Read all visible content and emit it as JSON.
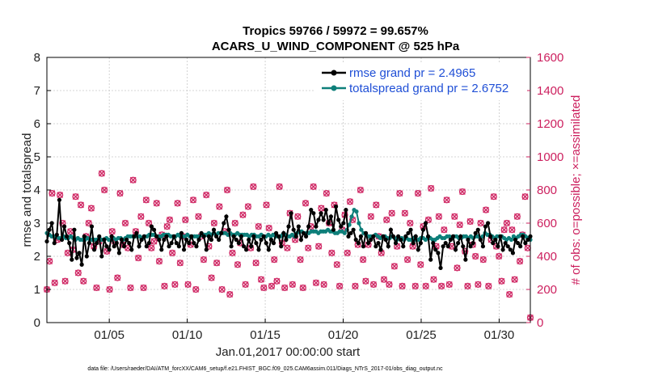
{
  "chart_data": {
    "type": "line",
    "title_line1": "Tropics 59766 / 59972 = 99.657%",
    "title_line2": "ACARS_U_WIND_COMPONENT @ 525 hPa",
    "xlabel": "Jan.01,2017 00:00:00 start",
    "ylabel_left": "rmse and totalspread",
    "ylabel_right": "# of obs: o=possible; ×=assimilated",
    "ylim_left": [
      0,
      8
    ],
    "ylim_right": [
      0,
      1600
    ],
    "xlim_days": [
      1,
      32
    ],
    "x_ticks": [
      {
        "label": "01/05",
        "day": 5
      },
      {
        "label": "01/10",
        "day": 10
      },
      {
        "label": "01/15",
        "day": 15
      },
      {
        "label": "01/20",
        "day": 20
      },
      {
        "label": "01/25",
        "day": 25
      },
      {
        "label": "01/30",
        "day": 30
      }
    ],
    "y_ticks_left": [
      "0",
      "1",
      "2",
      "3",
      "4",
      "5",
      "6",
      "7",
      "8"
    ],
    "y_ticks_right": [
      "0",
      "200",
      "400",
      "600",
      "800",
      "1000",
      "1200",
      "1400",
      "1600"
    ],
    "series": [
      {
        "name": "rmse grand pr = 2.4965",
        "color": "#000000",
        "values": [
          2.45,
          2.8,
          3.0,
          2.4,
          2.65,
          3.7,
          2.5,
          2.9,
          2.6,
          2.4,
          1.9,
          2.8,
          1.95,
          2.1,
          1.75,
          2.6,
          2.0,
          2.4,
          2.9,
          2.2,
          2.4,
          2.6,
          2.0,
          2.5,
          2.3,
          2.2,
          2.6,
          2.3,
          2.4,
          2.1,
          2.5,
          2.3,
          2.5,
          2.4,
          2.2,
          2.6,
          2.7,
          2.3,
          2.5,
          2.6,
          2.3,
          2.4,
          2.9,
          2.8,
          2.6,
          2.5,
          2.2,
          2.5,
          2.6,
          2.3,
          2.4,
          2.6,
          2.4,
          2.3,
          2.7,
          2.2,
          2.5,
          2.4,
          2.6,
          2.4,
          2.3,
          2.5,
          2.7,
          2.6,
          2.2,
          2.6,
          2.5,
          2.8,
          2.6,
          2.5,
          2.7,
          3.0,
          3.2,
          2.8,
          2.3,
          2.6,
          2.5,
          2.4,
          2.6,
          2.3,
          2.2,
          2.5,
          2.3,
          2.6,
          2.4,
          2.2,
          2.5,
          2.6,
          2.4,
          2.2,
          2.5,
          2.4,
          2.7,
          2.6,
          2.3,
          2.7,
          2.5,
          2.9,
          3.3,
          2.8,
          2.6,
          2.9,
          2.5,
          2.7,
          2.6,
          2.9,
          3.4,
          3.3,
          2.9,
          3.1,
          3.3,
          3.1,
          3.4,
          3.0,
          3.2,
          2.8,
          3.5,
          3.1,
          2.9,
          3.0,
          3.4,
          2.6,
          2.7,
          2.8,
          2.5,
          2.4,
          2.6,
          2.3,
          2.7,
          2.4,
          2.5,
          2.6,
          2.3,
          2.4,
          2.2,
          2.6,
          2.5,
          2.3,
          2.8,
          2.6,
          2.4,
          2.6,
          2.5,
          2.3,
          2.6,
          2.7,
          2.8,
          2.4,
          2.6,
          2.2,
          2.4,
          2.8,
          3.0,
          2.6,
          1.9,
          2.4,
          2.2,
          2.1,
          1.65,
          2.3,
          2.4,
          2.3,
          2.5,
          2.6,
          2.2,
          2.4,
          2.6,
          2.3,
          1.9,
          2.5,
          2.3,
          2.4,
          2.7,
          2.8,
          2.5,
          2.3,
          2.9,
          3.0,
          2.6,
          2.4,
          2.5,
          2.3,
          2.6,
          2.2,
          2.4,
          2.3,
          2.2,
          2.1,
          2.5,
          2.4,
          2.3,
          2.6,
          2.4,
          2.5,
          2.6
        ]
      },
      {
        "name": "totalspread grand pr = 2.6752",
        "color": "#0e7f7a",
        "values": [
          2.7,
          2.65,
          2.6,
          2.6,
          2.6,
          2.55,
          2.55,
          2.6,
          2.55,
          2.55,
          2.6,
          2.55,
          2.5,
          2.55,
          2.5,
          2.5,
          2.5,
          2.55,
          2.5,
          2.5,
          2.5,
          2.5,
          2.55,
          2.5,
          2.5,
          2.55,
          2.5,
          2.5,
          2.55,
          2.5,
          2.55,
          2.55,
          2.5,
          2.55,
          2.6,
          2.6,
          2.6,
          2.6,
          2.6,
          2.6,
          2.55,
          2.6,
          2.6,
          2.65,
          2.65,
          2.65,
          2.6,
          2.6,
          2.6,
          2.65,
          2.65,
          2.65,
          2.6,
          2.6,
          2.6,
          2.65,
          2.6,
          2.6,
          2.6,
          2.65,
          2.6,
          2.6,
          2.6,
          2.6,
          2.6,
          2.65,
          2.65,
          2.65,
          2.7,
          2.65,
          2.7,
          2.65,
          2.7,
          2.7,
          2.7,
          2.7,
          2.65,
          2.7,
          2.65,
          2.65,
          2.7,
          2.65,
          2.65,
          2.65,
          2.65,
          2.6,
          2.65,
          2.65,
          2.6,
          2.6,
          2.65,
          2.6,
          2.6,
          2.65,
          2.6,
          2.65,
          2.6,
          2.6,
          2.6,
          2.65,
          2.65,
          2.6,
          2.6,
          2.65,
          2.6,
          2.7,
          2.75,
          2.75,
          2.7,
          2.7,
          2.7,
          2.75,
          2.75,
          2.75,
          2.7,
          2.75,
          2.75,
          2.75,
          2.8,
          2.75,
          2.75,
          2.7,
          2.7,
          2.75,
          2.75,
          2.7,
          2.8,
          2.95,
          3.2,
          3.4,
          3.35,
          3.0,
          2.8,
          2.7,
          2.65,
          2.6,
          2.6,
          2.6,
          2.65,
          2.6,
          2.55,
          2.6,
          2.6,
          2.55,
          2.55,
          2.6,
          2.55,
          2.5,
          2.55,
          2.55,
          2.5,
          2.55,
          2.5,
          2.5,
          2.55,
          2.5,
          2.5,
          2.55,
          2.55,
          2.5,
          2.55,
          2.55,
          2.5,
          2.5,
          2.55,
          2.6,
          2.55,
          2.55,
          2.6,
          2.6,
          2.55,
          2.6,
          2.6,
          2.55,
          2.55,
          2.6,
          2.6,
          2.55,
          2.6,
          2.55,
          2.6,
          2.6,
          2.55,
          2.6,
          2.7,
          2.65,
          2.65,
          2.6,
          2.55,
          2.6,
          2.6,
          2.6,
          2.55,
          2.5,
          2.55,
          2.5,
          2.6,
          2.55,
          2.6,
          2.65,
          2.65,
          2.6,
          2.55,
          2.5
        ]
      },
      {
        "name": "possible",
        "color": "#d02a66",
        "values": [
          200,
          370,
          780,
          240,
          500,
          770,
          600,
          250,
          420,
          550,
          440,
          760,
          300,
          710,
          250,
          520,
          600,
          690,
          460,
          210,
          490,
          900,
          800,
          430,
          200,
          550,
          490,
          270,
          780,
          470,
          600,
          450,
          210,
          860,
          550,
          390,
          640,
          210,
          740,
          600,
          450,
          490,
          720,
          370,
          530,
          220,
          580,
          620,
          420,
          230,
          720,
          360,
          520,
          620,
          230,
          470,
          740,
          200,
          640,
          520,
          380,
          770,
          460,
          270,
          600,
          360,
          700,
          200,
          550,
          800,
          170,
          420,
          600,
          350,
          480,
          650,
          230,
          700,
          450,
          820,
          360,
          580,
          260,
          210,
          710,
          570,
          220,
          380,
          250,
          820,
          480,
          210,
          450,
          660,
          230,
          500,
          640,
          380,
          210,
          720,
          450,
          580,
          820,
          240,
          460,
          690,
          230,
          780,
          600,
          420,
          710,
          350,
          220,
          560,
          650,
          420,
          730,
          620,
          220,
          470,
          800,
          380,
          250,
          470,
          640,
          230,
          710,
          520,
          420,
          260,
          620,
          230,
          660,
          340,
          460,
          780,
          220,
          660,
          380,
          600,
          460,
          220,
          780,
          350,
          580,
          220,
          620,
          810,
          260,
          460,
          640,
          220,
          560,
          740,
          230,
          460,
          640,
          330,
          590,
          790,
          430,
          220,
          610,
          470,
          400,
          230,
          600,
          380,
          680,
          220,
          500,
          760,
          460,
          400,
          250,
          560,
          600,
          170,
          560,
          260,
          640,
          370,
          530,
          760,
          450,
          30
        ]
      },
      {
        "name": "assimilated",
        "color": "#d02a66",
        "values": [
          200,
          370,
          780,
          240,
          500,
          770,
          600,
          250,
          420,
          550,
          440,
          760,
          300,
          710,
          250,
          520,
          600,
          690,
          460,
          210,
          490,
          900,
          800,
          430,
          200,
          550,
          490,
          270,
          780,
          470,
          600,
          450,
          210,
          860,
          550,
          390,
          640,
          210,
          740,
          600,
          450,
          490,
          720,
          370,
          530,
          220,
          580,
          620,
          420,
          230,
          720,
          360,
          520,
          620,
          230,
          470,
          740,
          200,
          640,
          520,
          380,
          770,
          460,
          270,
          600,
          360,
          700,
          200,
          550,
          800,
          170,
          420,
          600,
          350,
          480,
          650,
          230,
          700,
          450,
          820,
          360,
          580,
          260,
          210,
          710,
          570,
          220,
          380,
          250,
          820,
          480,
          210,
          450,
          660,
          230,
          500,
          640,
          380,
          210,
          720,
          450,
          580,
          820,
          240,
          460,
          690,
          230,
          780,
          600,
          420,
          710,
          350,
          220,
          560,
          650,
          420,
          730,
          620,
          220,
          470,
          800,
          380,
          250,
          470,
          640,
          230,
          710,
          520,
          420,
          260,
          620,
          230,
          660,
          340,
          460,
          780,
          220,
          660,
          380,
          600,
          460,
          220,
          780,
          350,
          580,
          220,
          620,
          810,
          260,
          460,
          640,
          220,
          560,
          740,
          230,
          460,
          640,
          330,
          590,
          790,
          430,
          220,
          610,
          470,
          400,
          230,
          600,
          380,
          680,
          220,
          500,
          760,
          460,
          400,
          250,
          560,
          600,
          170,
          560,
          260,
          640,
          370,
          530,
          760,
          450,
          30
        ]
      }
    ],
    "legend": {
      "location": "top-right"
    }
  },
  "footnote": "data file: /Users/raeder/DAI/ATM_forcXX/CAM6_setup/f.e21.FHIST_BGC.f09_025.CAM6assim.011/Diags_NTrS_2017-01/obs_diag_output.nc"
}
